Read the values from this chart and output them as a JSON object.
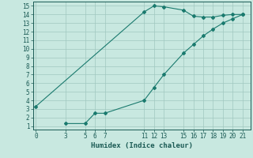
{
  "line1_x": [
    0,
    11,
    12,
    13,
    15,
    16,
    17,
    18,
    19,
    20,
    21
  ],
  "line1_y": [
    3.3,
    14.3,
    15.0,
    14.9,
    14.5,
    13.8,
    13.7,
    13.7,
    13.9,
    14.0,
    14.0
  ],
  "line2_x": [
    3,
    5,
    6,
    7,
    11,
    12,
    13,
    15,
    16,
    17,
    18,
    19,
    20,
    21
  ],
  "line2_y": [
    1.3,
    1.3,
    2.5,
    2.5,
    4.0,
    5.5,
    7.0,
    9.5,
    10.5,
    11.5,
    12.3,
    13.0,
    13.5,
    14.0
  ],
  "line_color": "#1a7a6e",
  "bg_color": "#c8e8e0",
  "grid_color": "#a0c8c0",
  "xlabel": "Humidex (Indice chaleur)",
  "xticks": [
    0,
    3,
    5,
    6,
    7,
    11,
    12,
    13,
    15,
    16,
    17,
    18,
    19,
    20,
    21
  ],
  "yticks": [
    1,
    2,
    3,
    4,
    5,
    6,
    7,
    8,
    9,
    10,
    11,
    12,
    13,
    14,
    15
  ],
  "xlim": [
    -0.3,
    21.8
  ],
  "ylim": [
    0.6,
    15.5
  ],
  "marker": "D",
  "markersize": 2.0,
  "linewidth": 0.8,
  "xlabel_fontsize": 6.5,
  "tick_fontsize": 5.5,
  "font_color": "#1a5a54"
}
